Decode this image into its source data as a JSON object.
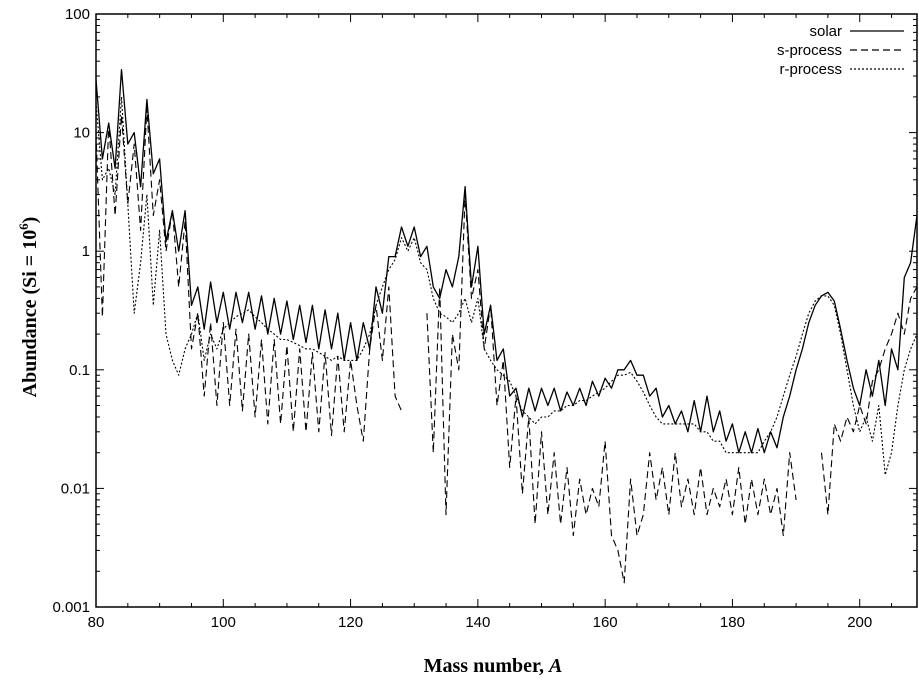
{
  "chart_data": {
    "type": "line",
    "xlabel_main": "Mass number, ",
    "xlabel_italic": "A",
    "ylabel_main": "Abundance (Si = 10",
    "ylabel_sup": "6",
    "ylabel_end": ")",
    "yscale": "log",
    "xlim": [
      80,
      209
    ],
    "ylim": [
      0.001,
      100
    ],
    "x_ticks": [
      "80",
      "100",
      "120",
      "140",
      "160",
      "180",
      "200"
    ],
    "y_ticks": [
      "0.001",
      "0.01",
      "0.1",
      "1",
      "10",
      "100"
    ],
    "grid": false,
    "legend_position": "top-right",
    "series": [
      {
        "name": "solar",
        "style": "solid",
        "x": [
          80,
          81,
          82,
          83,
          84,
          85,
          86,
          87,
          88,
          89,
          90,
          91,
          92,
          93,
          94,
          95,
          96,
          97,
          98,
          99,
          100,
          101,
          102,
          103,
          104,
          105,
          106,
          107,
          108,
          109,
          110,
          111,
          112,
          113,
          114,
          115,
          116,
          117,
          118,
          119,
          120,
          121,
          122,
          123,
          124,
          125,
          126,
          127,
          128,
          129,
          130,
          131,
          132,
          133,
          134,
          135,
          136,
          137,
          138,
          139,
          140,
          141,
          142,
          143,
          144,
          145,
          146,
          147,
          148,
          149,
          150,
          151,
          152,
          153,
          154,
          155,
          156,
          157,
          158,
          159,
          160,
          161,
          162,
          163,
          164,
          165,
          166,
          167,
          168,
          169,
          170,
          171,
          172,
          173,
          174,
          175,
          176,
          177,
          178,
          179,
          180,
          181,
          182,
          183,
          184,
          185,
          186,
          187,
          188,
          189,
          190,
          191,
          192,
          193,
          194,
          195,
          196,
          197,
          198,
          199,
          200,
          201,
          202,
          203,
          204,
          205,
          206,
          207,
          208,
          209
        ],
        "values": [
          28,
          6,
          12,
          5,
          34,
          8,
          10,
          3.5,
          19,
          4.5,
          6,
          1.2,
          2.2,
          1,
          2.2,
          0.35,
          0.5,
          0.22,
          0.55,
          0.25,
          0.45,
          0.22,
          0.45,
          0.25,
          0.45,
          0.22,
          0.42,
          0.2,
          0.4,
          0.2,
          0.38,
          0.18,
          0.35,
          0.17,
          0.35,
          0.15,
          0.32,
          0.15,
          0.3,
          0.12,
          0.25,
          0.12,
          0.25,
          0.15,
          0.5,
          0.3,
          0.9,
          0.9,
          1.6,
          1.1,
          1.6,
          0.9,
          1.1,
          0.5,
          0.4,
          0.7,
          0.5,
          0.9,
          3.5,
          0.5,
          1.1,
          0.2,
          0.35,
          0.12,
          0.15,
          0.06,
          0.07,
          0.04,
          0.07,
          0.045,
          0.07,
          0.05,
          0.07,
          0.045,
          0.065,
          0.05,
          0.07,
          0.05,
          0.08,
          0.06,
          0.085,
          0.07,
          0.1,
          0.1,
          0.12,
          0.09,
          0.09,
          0.06,
          0.07,
          0.04,
          0.05,
          0.035,
          0.045,
          0.03,
          0.055,
          0.03,
          0.06,
          0.03,
          0.045,
          0.025,
          0.035,
          0.02,
          0.03,
          0.02,
          0.032,
          0.02,
          0.03,
          0.022,
          0.04,
          0.06,
          0.1,
          0.15,
          0.25,
          0.35,
          0.42,
          0.45,
          0.38,
          0.22,
          0.12,
          0.07,
          0.05,
          0.1,
          0.06,
          0.12,
          0.05,
          0.15,
          0.1,
          0.6,
          0.8,
          2.0
        ]
      },
      {
        "name": "s-process",
        "style": "dashed",
        "x": [
          80,
          81,
          82,
          83,
          84,
          85,
          86,
          87,
          88,
          89,
          90,
          91,
          92,
          93,
          94,
          95,
          96,
          97,
          98,
          99,
          100,
          101,
          102,
          103,
          104,
          105,
          106,
          107,
          108,
          109,
          110,
          111,
          112,
          113,
          114,
          115,
          116,
          117,
          118,
          119,
          120,
          121,
          122,
          123,
          124,
          125,
          126,
          127,
          128,
          null,
          132,
          133,
          134,
          135,
          136,
          137,
          138,
          139,
          140,
          141,
          142,
          143,
          144,
          145,
          146,
          147,
          148,
          149,
          150,
          151,
          152,
          153,
          154,
          155,
          156,
          157,
          158,
          159,
          160,
          161,
          162,
          163,
          164,
          165,
          166,
          167,
          168,
          169,
          170,
          171,
          172,
          173,
          174,
          175,
          176,
          177,
          178,
          179,
          180,
          181,
          182,
          183,
          184,
          185,
          186,
          187,
          188,
          189,
          190,
          null,
          194,
          195,
          196,
          197,
          198,
          199,
          200,
          201,
          202,
          203,
          204,
          205,
          206,
          207,
          208,
          209
        ],
        "values": [
          10,
          0.28,
          12,
          2,
          14,
          2.5,
          8,
          1.5,
          16,
          2,
          4,
          1,
          2.2,
          0.5,
          1.8,
          0.15,
          0.3,
          0.06,
          0.25,
          0.05,
          0.25,
          0.05,
          0.22,
          0.045,
          0.2,
          0.04,
          0.18,
          0.035,
          0.18,
          0.035,
          0.16,
          0.03,
          0.15,
          0.03,
          0.14,
          0.03,
          0.14,
          0.028,
          0.13,
          0.03,
          0.12,
          0.05,
          0.025,
          0.15,
          0.35,
          0.12,
          0.5,
          0.06,
          0.045,
          null,
          0.3,
          0.02,
          0.5,
          0.006,
          0.2,
          0.1,
          3.0,
          0.4,
          0.7,
          0.15,
          0.35,
          0.05,
          0.12,
          0.015,
          0.06,
          0.009,
          0.04,
          0.005,
          0.03,
          0.006,
          0.02,
          0.005,
          0.015,
          0.004,
          0.012,
          0.006,
          0.01,
          0.007,
          0.025,
          0.004,
          0.003,
          0.0016,
          0.012,
          0.004,
          0.006,
          0.02,
          0.008,
          0.015,
          0.006,
          0.02,
          0.007,
          0.012,
          0.006,
          0.015,
          0.006,
          0.01,
          0.007,
          0.012,
          0.006,
          0.015,
          0.005,
          0.012,
          0.006,
          0.012,
          0.006,
          0.01,
          0.004,
          0.02,
          0.008,
          null,
          0.02,
          0.006,
          0.035,
          0.025,
          0.04,
          0.03,
          0.05,
          0.035,
          0.08,
          0.1,
          0.15,
          0.2,
          0.3,
          0.2,
          0.4,
          0.5
        ]
      },
      {
        "name": "r-process",
        "style": "dotted",
        "x": [
          80,
          81,
          82,
          83,
          84,
          85,
          86,
          87,
          88,
          89,
          90,
          91,
          92,
          93,
          94,
          95,
          96,
          97,
          98,
          99,
          100,
          101,
          102,
          103,
          104,
          105,
          106,
          107,
          108,
          109,
          110,
          111,
          112,
          113,
          114,
          115,
          116,
          117,
          118,
          119,
          120,
          121,
          122,
          123,
          124,
          125,
          126,
          127,
          128,
          129,
          130,
          131,
          132,
          133,
          134,
          135,
          136,
          137,
          138,
          139,
          140,
          141,
          142,
          143,
          144,
          145,
          146,
          147,
          148,
          149,
          150,
          151,
          152,
          153,
          154,
          155,
          156,
          157,
          158,
          159,
          160,
          161,
          162,
          163,
          164,
          165,
          166,
          167,
          168,
          169,
          170,
          171,
          172,
          173,
          174,
          175,
          176,
          177,
          178,
          179,
          180,
          181,
          182,
          183,
          184,
          185,
          186,
          187,
          188,
          189,
          190,
          191,
          192,
          193,
          194,
          195,
          196,
          197,
          198,
          199,
          200,
          201,
          202,
          203,
          204,
          205,
          206,
          207,
          208,
          209
        ],
        "values": [
          18,
          4,
          5,
          3,
          20,
          2.5,
          0.3,
          0.8,
          3,
          0.35,
          1.5,
          0.2,
          0.12,
          0.09,
          0.15,
          0.2,
          0.3,
          0.12,
          0.2,
          0.15,
          0.22,
          0.25,
          0.28,
          0.3,
          0.32,
          0.28,
          0.25,
          0.22,
          0.2,
          0.18,
          0.18,
          0.17,
          0.16,
          0.15,
          0.15,
          0.14,
          0.13,
          0.12,
          0.13,
          0.12,
          0.12,
          0.12,
          0.15,
          0.2,
          0.35,
          0.5,
          0.7,
          0.85,
          1.3,
          1.0,
          1.3,
          0.8,
          0.7,
          0.4,
          0.3,
          0.28,
          0.25,
          0.3,
          0.4,
          0.25,
          0.4,
          0.15,
          0.12,
          0.1,
          0.09,
          0.08,
          0.06,
          0.045,
          0.04,
          0.035,
          0.04,
          0.04,
          0.045,
          0.045,
          0.05,
          0.05,
          0.055,
          0.055,
          0.06,
          0.065,
          0.07,
          0.08,
          0.09,
          0.09,
          0.095,
          0.08,
          0.065,
          0.05,
          0.04,
          0.035,
          0.035,
          0.035,
          0.035,
          0.035,
          0.035,
          0.03,
          0.03,
          0.025,
          0.025,
          0.02,
          0.02,
          0.02,
          0.02,
          0.02,
          0.02,
          0.025,
          0.03,
          0.04,
          0.06,
          0.09,
          0.13,
          0.2,
          0.3,
          0.38,
          0.42,
          0.42,
          0.35,
          0.2,
          0.1,
          0.05,
          0.03,
          0.04,
          0.025,
          0.05,
          0.013,
          0.02,
          0.05,
          0.1,
          0.15,
          0.2
        ]
      }
    ]
  }
}
